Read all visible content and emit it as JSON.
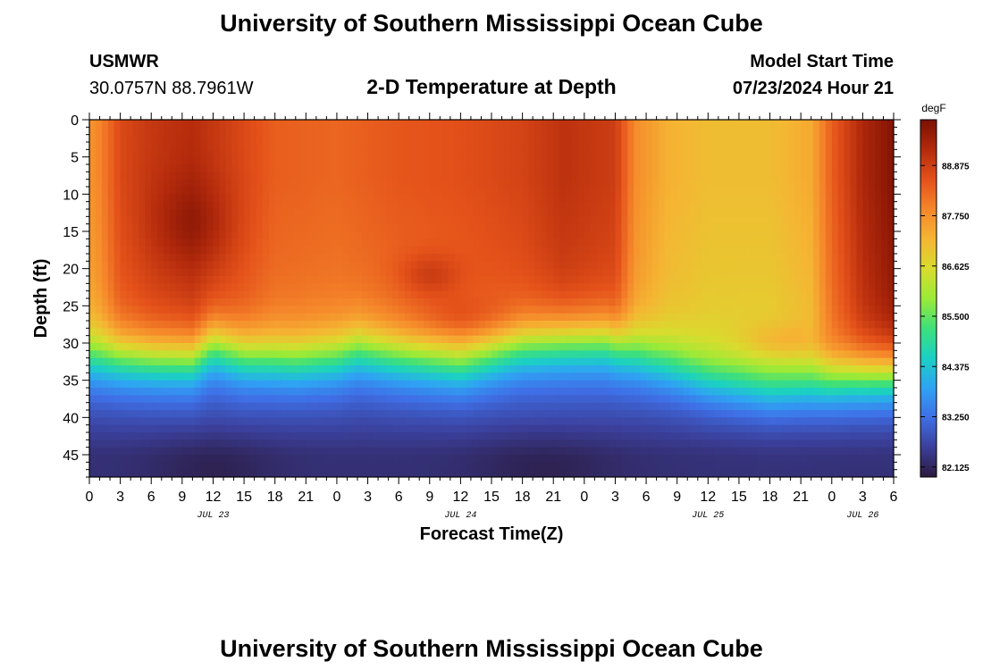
{
  "page": {
    "title_top": "University of Southern Mississippi Ocean Cube",
    "title_bottom": "University of Southern Mississippi Ocean Cube"
  },
  "header": {
    "station_id": "USMWR",
    "coords": "30.0757N  88.7961W",
    "plot_title": "2-D Temperature at Depth",
    "model_start_label": "Model Start Time",
    "model_start_value": "07/23/2024 Hour 21"
  },
  "chart_data": {
    "type": "heatmap",
    "title": "2-D Temperature at Depth",
    "xlabel": "Forecast Time(Z)",
    "ylabel": "Depth (ft)",
    "x_hours_range": [
      0,
      78
    ],
    "y_range": [
      0,
      48
    ],
    "y_ticks": [
      0,
      5,
      10,
      15,
      20,
      25,
      30,
      35,
      40,
      45
    ],
    "x_tick_hours": [
      0,
      3,
      6,
      9,
      12,
      15,
      18,
      21,
      24,
      27,
      30,
      33,
      36,
      39,
      42,
      45,
      48,
      51,
      54,
      57,
      60,
      63,
      66,
      69,
      72,
      75,
      78
    ],
    "x_tick_labels": [
      "0",
      "3",
      "6",
      "9",
      "12",
      "15",
      "18",
      "21",
      "0",
      "3",
      "6",
      "9",
      "12",
      "15",
      "18",
      "21",
      "0",
      "3",
      "6",
      "9",
      "12",
      "15",
      "18",
      "21",
      "0",
      "3",
      "6"
    ],
    "day_labels": [
      {
        "label": "JUL 23",
        "hour": 12
      },
      {
        "label": "JUL 24",
        "hour": 36
      },
      {
        "label": "JUL 25",
        "hour": 60
      },
      {
        "label": "JUL 26",
        "hour": 75
      }
    ],
    "colorbar": {
      "unit": "degF",
      "min": 81.9,
      "max": 89.9,
      "tick_values": [
        82.125,
        83.25,
        84.375,
        85.5,
        86.625,
        87.75,
        88.875
      ],
      "tick_labels": [
        "82.125",
        "83.250",
        "84.375",
        "85.500",
        "86.625",
        "87.750",
        "88.875"
      ],
      "colors": [
        "#2b1a3e",
        "#3b3f9a",
        "#3f6fe6",
        "#2fa3f4",
        "#1bd0c4",
        "#3ee07a",
        "#9bea37",
        "#d9dc2e",
        "#f5b533",
        "#f5862a",
        "#e4511a",
        "#b32a0c",
        "#7a1003"
      ]
    },
    "surface_temp_profile": [
      {
        "t": 0,
        "v": 87.7
      },
      {
        "t": 1,
        "v": 87.9
      },
      {
        "t": 3,
        "v": 88.7
      },
      {
        "t": 6,
        "v": 89.0
      },
      {
        "t": 10,
        "v": 89.2
      },
      {
        "t": 14,
        "v": 88.8
      },
      {
        "t": 18,
        "v": 88.4
      },
      {
        "t": 24,
        "v": 88.3
      },
      {
        "t": 30,
        "v": 88.5
      },
      {
        "t": 36,
        "v": 88.6
      },
      {
        "t": 42,
        "v": 88.8
      },
      {
        "t": 46,
        "v": 89.1
      },
      {
        "t": 51,
        "v": 88.9
      },
      {
        "t": 53,
        "v": 87.8
      },
      {
        "t": 56,
        "v": 87.3
      },
      {
        "t": 60,
        "v": 87.1
      },
      {
        "t": 66,
        "v": 87.1
      },
      {
        "t": 70,
        "v": 87.4
      },
      {
        "t": 72,
        "v": 88.4
      },
      {
        "t": 75,
        "v": 89.3
      },
      {
        "t": 78,
        "v": 89.8
      }
    ],
    "thermocline_depth": [
      {
        "t": 0,
        "d": 31.5
      },
      {
        "t": 6,
        "d": 32.0
      },
      {
        "t": 10,
        "d": 32.0
      },
      {
        "t": 12,
        "d": 30.0
      },
      {
        "t": 15,
        "d": 31.5
      },
      {
        "t": 20,
        "d": 32.0
      },
      {
        "t": 24,
        "d": 31.5
      },
      {
        "t": 26,
        "d": 30.5
      },
      {
        "t": 30,
        "d": 31.5
      },
      {
        "t": 36,
        "d": 32.5
      },
      {
        "t": 42,
        "d": 30.0
      },
      {
        "t": 46,
        "d": 29.5
      },
      {
        "t": 50,
        "d": 29.5
      },
      {
        "t": 54,
        "d": 31.5
      },
      {
        "t": 60,
        "d": 34.5
      },
      {
        "t": 64,
        "d": 35.5
      },
      {
        "t": 66,
        "d": 36.0
      },
      {
        "t": 70,
        "d": 35.5
      },
      {
        "t": 74,
        "d": 34.5
      },
      {
        "t": 78,
        "d": 34.0
      }
    ],
    "bottom_temp": 82.3
  }
}
